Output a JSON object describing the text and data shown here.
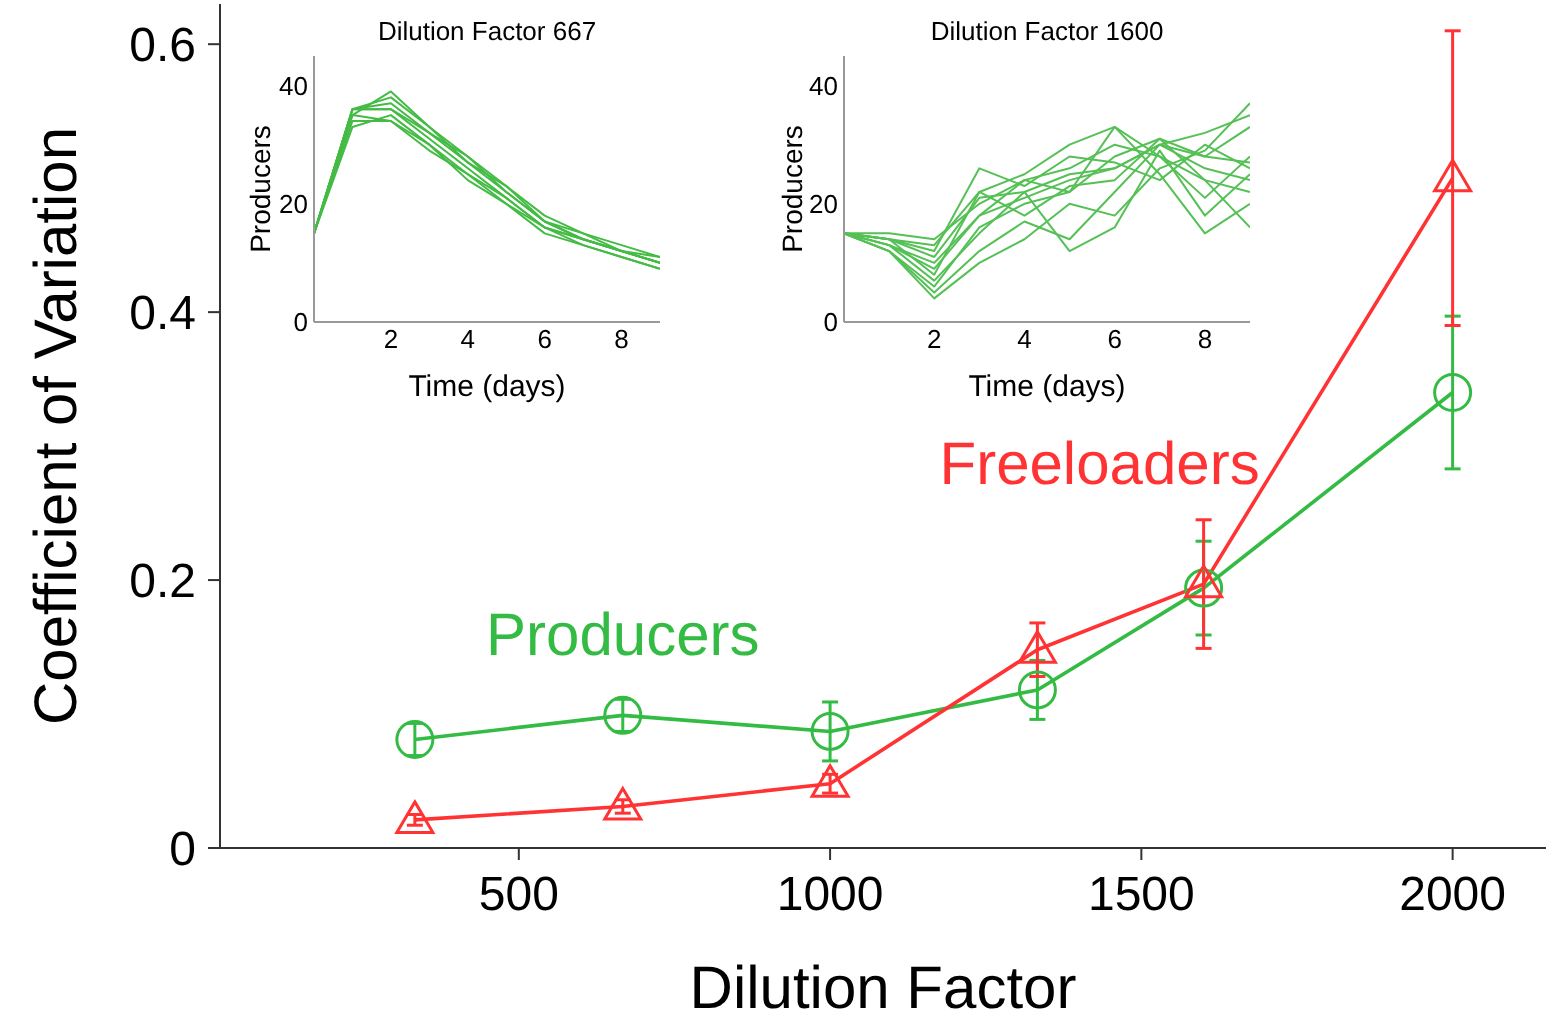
{
  "chart_data": [
    {
      "type": "line",
      "xlabel": "Dilution Factor",
      "ylabel": "Coefficient of Variation",
      "x": [
        333,
        667,
        1000,
        1333,
        1600,
        2000
      ],
      "xlim": [
        20,
        2150
      ],
      "xticks": [
        500,
        1000,
        1500,
        2000
      ],
      "ylim": [
        0,
        0.63
      ],
      "yticks": [
        0,
        0.2,
        0.4,
        0.6
      ],
      "grid": false,
      "legend": false,
      "series": [
        {
          "name": "Producers",
          "color": "#33bb44",
          "marker": "circle",
          "values": [
            0.081,
            0.099,
            0.087,
            0.118,
            0.194,
            0.34
          ],
          "errors": [
            0.012,
            0.012,
            0.022,
            0.022,
            0.035,
            0.057
          ]
        },
        {
          "name": "Freeloaders",
          "color": "#ff3333",
          "marker": "triangle",
          "values": [
            0.021,
            0.031,
            0.048,
            0.148,
            0.197,
            0.5
          ],
          "errors": [
            0.004,
            0.005,
            0.007,
            0.02,
            0.048,
            0.11
          ]
        }
      ]
    },
    {
      "type": "line",
      "title": "Dilution Factor 667",
      "xlabel": "Time (days)",
      "ylabel": "Producers",
      "x": [
        0,
        1,
        2,
        3,
        4,
        5,
        6,
        7,
        8,
        9
      ],
      "xlim": [
        0,
        9
      ],
      "xticks": [
        2,
        4,
        6,
        8
      ],
      "ylim": [
        0,
        45
      ],
      "yticks": [
        0,
        20,
        40
      ],
      "grid": false,
      "legend": false,
      "series": [
        {
          "color": "#44bb44",
          "values": [
            15,
            36,
            36,
            31,
            26,
            21,
            16,
            14,
            12,
            10
          ]
        },
        {
          "color": "#44bb44",
          "values": [
            15,
            35,
            39,
            33,
            27,
            22,
            17,
            14,
            12,
            10
          ]
        },
        {
          "color": "#44bb44",
          "values": [
            15,
            34,
            34,
            30,
            25,
            20,
            16,
            13,
            11,
            9
          ]
        },
        {
          "color": "#44bb44",
          "values": [
            15,
            36,
            37,
            32,
            27,
            23,
            18,
            15,
            13,
            11
          ]
        },
        {
          "color": "#44bb44",
          "values": [
            15,
            33,
            35,
            30,
            24,
            20,
            15,
            13,
            11,
            9
          ]
        },
        {
          "color": "#44bb44",
          "values": [
            15,
            36,
            36,
            32,
            28,
            22,
            17,
            14,
            12,
            10
          ]
        },
        {
          "color": "#44bb44",
          "values": [
            15,
            35,
            34,
            29,
            25,
            21,
            16,
            14,
            12,
            10
          ]
        },
        {
          "color": "#44bb44",
          "values": [
            15,
            36,
            38,
            33,
            28,
            23,
            17,
            15,
            12,
            11
          ]
        }
      ]
    },
    {
      "type": "line",
      "title": "Dilution Factor 1600",
      "xlabel": "Time (days)",
      "ylabel": "Producers",
      "x": [
        0,
        1,
        2,
        3,
        4,
        5,
        6,
        7,
        8,
        9
      ],
      "xlim": [
        0,
        9
      ],
      "xticks": [
        2,
        4,
        6,
        8
      ],
      "ylim": [
        0,
        45
      ],
      "yticks": [
        0,
        20,
        40
      ],
      "grid": false,
      "legend": false,
      "series": [
        {
          "color": "#55c055",
          "values": [
            15,
            14,
            8,
            22,
            25,
            30,
            33,
            28,
            24,
            22
          ]
        },
        {
          "color": "#55c055",
          "values": [
            15,
            13,
            10,
            18,
            21,
            24,
            26,
            30,
            26,
            24
          ]
        },
        {
          "color": "#55c055",
          "values": [
            15,
            12,
            5,
            12,
            17,
            14,
            22,
            30,
            28,
            33
          ]
        },
        {
          "color": "#55c055",
          "values": [
            15,
            14,
            12,
            26,
            23,
            28,
            27,
            24,
            30,
            26
          ]
        },
        {
          "color": "#55c055",
          "values": [
            15,
            12,
            6,
            16,
            20,
            22,
            33,
            25,
            15,
            20
          ]
        },
        {
          "color": "#55c055",
          "values": [
            15,
            15,
            14,
            20,
            24,
            22,
            28,
            31,
            28,
            27
          ]
        },
        {
          "color": "#55c055",
          "values": [
            15,
            13,
            7,
            15,
            22,
            12,
            16,
            29,
            18,
            25
          ]
        },
        {
          "color": "#55c055",
          "values": [
            15,
            14,
            11,
            21,
            22,
            25,
            26,
            30,
            32,
            35
          ]
        },
        {
          "color": "#55c055",
          "values": [
            15,
            13,
            9,
            18,
            24,
            26,
            30,
            28,
            21,
            28
          ]
        },
        {
          "color": "#55c055",
          "values": [
            15,
            14,
            13,
            22,
            18,
            23,
            24,
            31,
            24,
            16
          ]
        },
        {
          "color": "#55c055",
          "values": [
            15,
            12,
            4,
            10,
            14,
            20,
            18,
            26,
            29,
            37
          ]
        }
      ]
    }
  ]
}
